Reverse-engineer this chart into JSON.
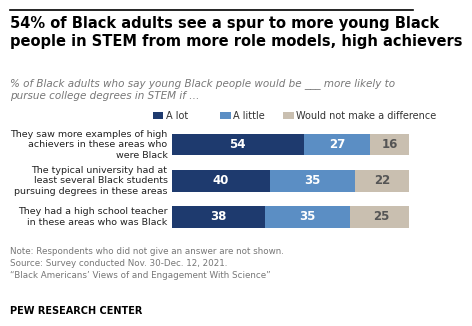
{
  "title_line1": "54% of Black adults see a spur to more young Black",
  "title_line2": "people in STEM from more role models, high achievers",
  "subtitle": "% of Black adults who say young Black people would be ___ more likely to\npursue college degrees in STEM if …",
  "categories": [
    "They saw more examples of high\nachievers in these areas who\nwere Black",
    "The typical university had at\nleast several Black students\npursuing degrees in these areas",
    "They had a high school teacher\nin these areas who was Black"
  ],
  "a_lot": [
    54,
    40,
    38
  ],
  "a_little": [
    27,
    35,
    35
  ],
  "no_diff": [
    16,
    22,
    25
  ],
  "color_a_lot": "#1e3a6e",
  "color_a_little": "#5b8ec4",
  "color_no_diff": "#c9bfb0",
  "legend_labels": [
    "A lot",
    "A little",
    "Would not make a difference"
  ],
  "note_line1": "Note: Respondents who did not give an answer are not shown.",
  "note_line2": "Source: Survey conducted Nov. 30-Dec. 12, 2021.",
  "note_line3": "“Black Americans’ Views of and Engagement With Science”",
  "footer": "PEW RESEARCH CENTER",
  "bar_label_color_dark": "white",
  "bar_label_color_light": "#555555",
  "bg_color": "#ffffff"
}
